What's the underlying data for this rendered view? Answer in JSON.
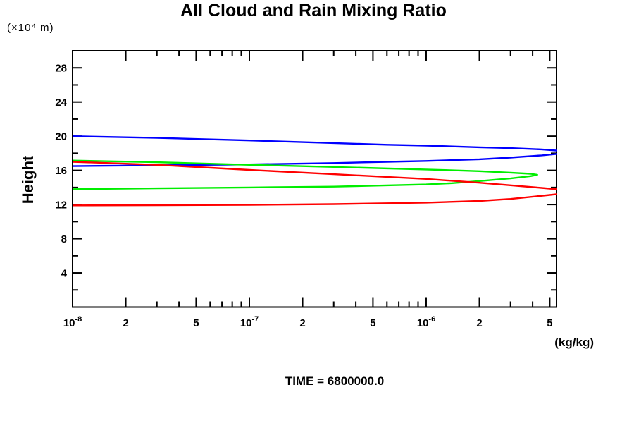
{
  "chart_data": {
    "type": "line",
    "title": "All Cloud and Rain Mixing Ratio",
    "time_label": "TIME = 6800000.0",
    "legend": "none",
    "grid": false,
    "x_axis": {
      "unit": "(kg/kg)",
      "scale": "log",
      "lim": [
        1e-08,
        5.46e-06
      ],
      "ticks": [
        {
          "v": 1e-08,
          "major": true,
          "label": "10",
          "sup": "-8"
        },
        {
          "v": 2e-08,
          "major": true,
          "label": "2"
        },
        {
          "v": 3e-08
        },
        {
          "v": 4e-08
        },
        {
          "v": 5e-08,
          "major": true,
          "label": "5"
        },
        {
          "v": 6e-08
        },
        {
          "v": 7e-08
        },
        {
          "v": 8e-08
        },
        {
          "v": 9e-08
        },
        {
          "v": 1e-07,
          "major": true,
          "label": "10",
          "sup": "-7"
        },
        {
          "v": 2e-07,
          "major": true,
          "label": "2"
        },
        {
          "v": 3e-07
        },
        {
          "v": 4e-07
        },
        {
          "v": 5e-07,
          "major": true,
          "label": "5"
        },
        {
          "v": 6e-07
        },
        {
          "v": 7e-07
        },
        {
          "v": 8e-07
        },
        {
          "v": 9e-07
        },
        {
          "v": 1e-06,
          "major": true,
          "label": "10",
          "sup": "-6"
        },
        {
          "v": 2e-06,
          "major": true,
          "label": "2"
        },
        {
          "v": 3e-06
        },
        {
          "v": 4e-06
        },
        {
          "v": 5e-06,
          "major": true,
          "label": "5"
        }
      ]
    },
    "y_axis": {
      "title": "Height",
      "unit": "(×10⁴ m)",
      "lim": [
        0,
        30
      ],
      "ticks": [
        {
          "v": 2
        },
        {
          "v": 4,
          "major": true,
          "label": "4"
        },
        {
          "v": 6
        },
        {
          "v": 8,
          "major": true,
          "label": "8"
        },
        {
          "v": 10
        },
        {
          "v": 12,
          "major": true,
          "label": "12"
        },
        {
          "v": 14
        },
        {
          "v": 16,
          "major": true,
          "label": "16"
        },
        {
          "v": 18
        },
        {
          "v": 20,
          "major": true,
          "label": "20"
        },
        {
          "v": 22
        },
        {
          "v": 24,
          "major": true,
          "label": "24"
        },
        {
          "v": 26
        },
        {
          "v": 28,
          "major": true,
          "label": "28"
        }
      ]
    },
    "series": [
      {
        "name": "blue",
        "color": "#0000ff",
        "points": [
          [
            1e-08,
            20.0
          ],
          [
            3e-08,
            19.8
          ],
          [
            1e-07,
            19.5
          ],
          [
            3e-07,
            19.2
          ],
          [
            6e-07,
            19.0
          ],
          [
            1e-06,
            18.9
          ],
          [
            2e-06,
            18.7
          ],
          [
            3e-06,
            18.6
          ],
          [
            4.5e-06,
            18.45
          ],
          [
            5.8e-06,
            18.28
          ],
          [
            6.4e-06,
            18.12
          ],
          [
            5.8e-06,
            17.97
          ],
          [
            4.5e-06,
            17.75
          ],
          [
            3e-06,
            17.5
          ],
          [
            2e-06,
            17.3
          ],
          [
            1e-06,
            17.1
          ],
          [
            6e-07,
            17.0
          ],
          [
            3e-07,
            16.85
          ],
          [
            1e-07,
            16.7
          ],
          [
            3e-08,
            16.6
          ],
          [
            1e-08,
            16.5
          ]
        ]
      },
      {
        "name": "green",
        "color": "#00ee00",
        "points": [
          [
            1e-08,
            17.15
          ],
          [
            3e-08,
            16.95
          ],
          [
            1e-07,
            16.65
          ],
          [
            3e-07,
            16.4
          ],
          [
            1e-06,
            16.1
          ],
          [
            2e-06,
            15.9
          ],
          [
            3e-06,
            15.73
          ],
          [
            3.9e-06,
            15.6
          ],
          [
            4.25e-06,
            15.48
          ],
          [
            3.9e-06,
            15.33
          ],
          [
            3e-06,
            15.05
          ],
          [
            2e-06,
            14.75
          ],
          [
            1.4e-06,
            14.5
          ],
          [
            1e-06,
            14.35
          ],
          [
            3e-07,
            14.1
          ],
          [
            1e-07,
            14.0
          ],
          [
            3e-08,
            13.9
          ],
          [
            1e-08,
            13.8
          ]
        ]
      },
      {
        "name": "red",
        "color": "#ff0000",
        "points": [
          [
            1e-08,
            17.0
          ],
          [
            3e-08,
            16.65
          ],
          [
            1e-07,
            16.05
          ],
          [
            3e-07,
            15.55
          ],
          [
            1e-06,
            15.0
          ],
          [
            2e-06,
            14.55
          ],
          [
            3e-06,
            14.25
          ],
          [
            4.5e-06,
            13.95
          ],
          [
            6e-06,
            13.72
          ],
          [
            7e-06,
            13.5
          ],
          [
            6e-06,
            13.3
          ],
          [
            5e-06,
            13.12
          ],
          [
            3e-06,
            12.65
          ],
          [
            2e-06,
            12.42
          ],
          [
            1e-06,
            12.22
          ],
          [
            3e-07,
            12.05
          ],
          [
            1e-07,
            11.97
          ],
          [
            3e-08,
            11.92
          ],
          [
            1e-08,
            11.9
          ]
        ]
      }
    ]
  }
}
